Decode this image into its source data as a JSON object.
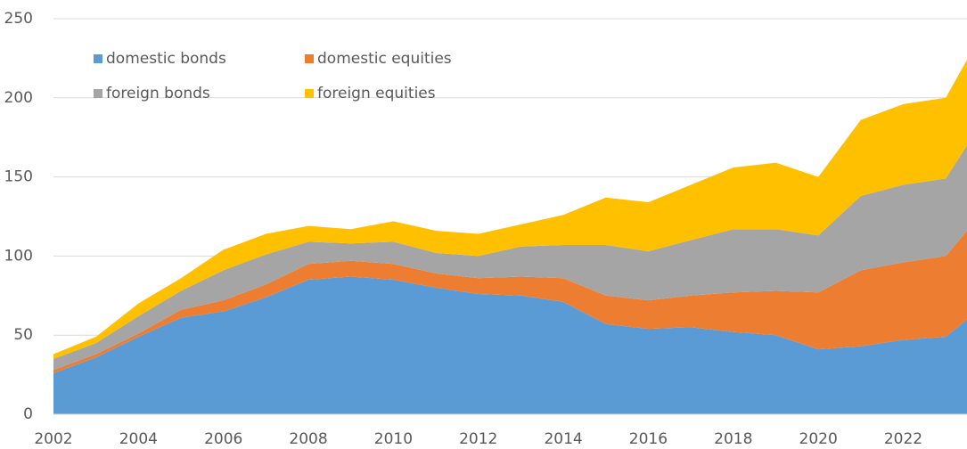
{
  "chart_data": {
    "type": "stacked-area",
    "x": [
      2002,
      2003,
      2004,
      2005,
      2006,
      2007,
      2008,
      2009,
      2010,
      2011,
      2012,
      2013,
      2014,
      2015,
      2016,
      2017,
      2018,
      2019,
      2020,
      2021,
      2022,
      2023,
      2023.5
    ],
    "series": [
      {
        "name": "domestic bonds",
        "color": "#5b9bd5",
        "values": [
          26,
          36,
          49,
          61,
          65,
          74,
          85,
          87,
          85,
          80,
          76,
          75,
          71,
          57,
          54,
          55,
          52,
          50,
          41,
          43,
          47,
          49,
          60
        ]
      },
      {
        "name": "domestic equities",
        "color": "#ed7d31",
        "values": [
          2,
          2,
          2,
          5,
          7,
          8,
          10,
          10,
          10,
          9,
          10,
          12,
          15,
          18,
          18,
          20,
          25,
          28,
          36,
          48,
          49,
          51,
          56
        ]
      },
      {
        "name": "foreign bonds",
        "color": "#a5a5a5",
        "values": [
          7,
          7,
          11,
          12,
          19,
          19,
          14,
          11,
          14,
          13,
          14,
          19,
          21,
          32,
          31,
          35,
          40,
          39,
          36,
          47,
          49,
          49,
          54
        ]
      },
      {
        "name": "foreign equities",
        "color": "#ffc000",
        "values": [
          3,
          4,
          8,
          8,
          13,
          13,
          10,
          9,
          13,
          14,
          14,
          14,
          19,
          30,
          31,
          35,
          39,
          42,
          37,
          48,
          51,
          51,
          54
        ]
      }
    ],
    "xlim": [
      2002,
      2023.5
    ],
    "xticks": [
      2002,
      2004,
      2006,
      2008,
      2010,
      2012,
      2014,
      2016,
      2018,
      2020,
      2022
    ],
    "ylim": [
      0,
      250
    ],
    "yticks": [
      0,
      50,
      100,
      150,
      200,
      250
    ],
    "grid": true,
    "legend": "top-left"
  }
}
